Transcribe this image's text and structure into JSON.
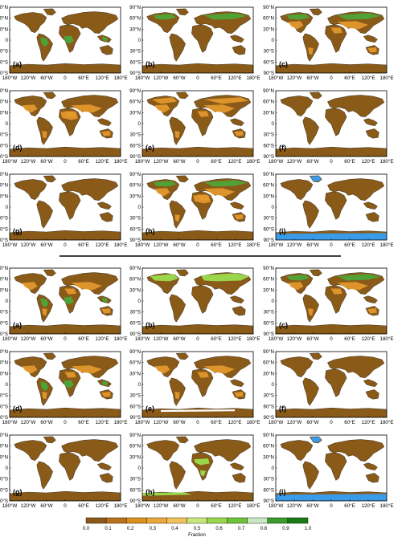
{
  "figure": {
    "lat_ticks": [
      "90°N",
      "60°N",
      "30°N",
      "0",
      "30°S",
      "60°S",
      "90°S"
    ],
    "lon_ticks": [
      "180°W",
      "120°W",
      "60°W",
      "0",
      "60°E",
      "120°E",
      "180°E"
    ],
    "panel_letters": [
      "(a)",
      "(b)",
      "(c)",
      "(d)",
      "(e)",
      "(f)",
      "(g)",
      "(h)",
      "(i)"
    ],
    "colorbar": {
      "title": "Fraction",
      "ticks": [
        "0.0",
        "0.1",
        "0.2",
        "0.3",
        "0.4",
        "0.5",
        "0.6",
        "0.7",
        "0.8",
        "0.9",
        "1.0"
      ],
      "colors": [
        "#8b5a1a",
        "#b8711c",
        "#d9901f",
        "#e9a83c",
        "#f2c25c",
        "#c8e67a",
        "#9ad64c",
        "#6cc23a",
        "#c9e7c0",
        "#3a9a2a",
        "#1c7a16"
      ]
    },
    "colors": {
      "land": "#8a5a18",
      "ocean": "#ffffff",
      "ice": "#3a9be8",
      "orange": "#e69a2e",
      "lightgreen": "#9ad64c",
      "green": "#4aa83a"
    },
    "groups": [
      {
        "panels": [
          {
            "letter": "(a)",
            "overlay": [
              "tropics-green"
            ]
          },
          {
            "letter": "(b)",
            "overlay": [
              "boreal-green"
            ]
          },
          {
            "letter": "(c)",
            "overlay": [
              "mid-orange",
              "boreal-green"
            ]
          },
          {
            "letter": "(d)",
            "overlay": [
              "mid-orange",
              "africa-orange"
            ]
          },
          {
            "letter": "(e)",
            "overlay": [
              "mid-orange",
              "boreal-orange"
            ]
          },
          {
            "letter": "(f)",
            "overlay": []
          },
          {
            "letter": "(g)",
            "overlay": []
          },
          {
            "letter": "(h)",
            "overlay": [
              "boreal-green",
              "mid-orange",
              "africa-orange"
            ]
          },
          {
            "letter": "(i)",
            "overlay": [
              "ice"
            ]
          }
        ]
      },
      {
        "panels": [
          {
            "letter": "(a)",
            "overlay": [
              "mid-orange",
              "tropics-green"
            ]
          },
          {
            "letter": "(b)",
            "overlay": [
              "boreal-lightgreen"
            ]
          },
          {
            "letter": "(c)",
            "overlay": [
              "mid-orange",
              "boreal-green"
            ]
          },
          {
            "letter": "(d)",
            "overlay": [
              "tropics-green",
              "mid-orange"
            ]
          },
          {
            "letter": "(e)",
            "overlay": [
              "mid-orange",
              "antarctic-white"
            ]
          },
          {
            "letter": "(f)",
            "overlay": []
          },
          {
            "letter": "(g)",
            "overlay": []
          },
          {
            "letter": "(h)",
            "overlay": [
              "africa-green",
              "antarctic-lightgreen"
            ]
          },
          {
            "letter": "(i)",
            "overlay": [
              "ice"
            ]
          }
        ]
      }
    ]
  }
}
